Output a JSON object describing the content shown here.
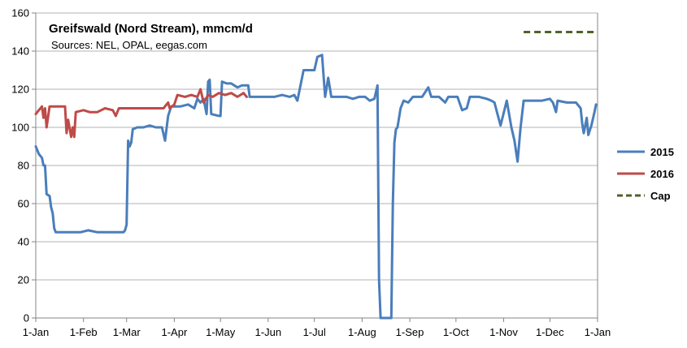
{
  "chart_data": {
    "type": "line",
    "title": "Greifswald (Nord Stream), mmcm/d",
    "subtitle": "Sources:  NEL, OPAL, eegas.com",
    "xlabel": "",
    "ylabel": "",
    "ylim": [
      0,
      160
    ],
    "yticks": [
      0,
      20,
      40,
      60,
      80,
      100,
      120,
      140,
      160
    ],
    "x_ticks": [
      "1-Jan",
      "1-Feb",
      "1-Mar",
      "1-Apr",
      "1-May",
      "1-Jun",
      "1-Jul",
      "1-Aug",
      "1-Sep",
      "1-Oct",
      "1-Nov",
      "1-Dec",
      "1-Jan"
    ],
    "grid": "horizontal",
    "legend_position": "right",
    "series": [
      {
        "name": "2015",
        "color": "#4a7ebb",
        "points": [
          [
            "2015-01-01",
            90
          ],
          [
            "2015-01-03",
            86
          ],
          [
            "2015-01-05",
            84
          ],
          [
            "2015-01-06",
            80
          ],
          [
            "2015-01-07",
            80
          ],
          [
            "2015-01-08",
            65
          ],
          [
            "2015-01-10",
            64
          ],
          [
            "2015-01-11",
            58
          ],
          [
            "2015-01-12",
            55
          ],
          [
            "2015-01-13",
            47
          ],
          [
            "2015-01-14",
            45
          ],
          [
            "2015-01-20",
            45
          ],
          [
            "2015-01-25",
            45
          ],
          [
            "2015-01-30",
            45
          ],
          [
            "2015-02-04",
            46
          ],
          [
            "2015-02-10",
            45
          ],
          [
            "2015-02-16",
            45
          ],
          [
            "2015-02-22",
            45
          ],
          [
            "2015-02-27",
            45
          ],
          [
            "2015-02-28",
            46
          ],
          [
            "2015-03-01",
            49
          ],
          [
            "2015-03-02",
            93
          ],
          [
            "2015-03-03",
            90
          ],
          [
            "2015-03-04",
            92
          ],
          [
            "2015-03-05",
            99
          ],
          [
            "2015-03-08",
            100
          ],
          [
            "2015-03-12",
            100
          ],
          [
            "2015-03-16",
            101
          ],
          [
            "2015-03-20",
            100
          ],
          [
            "2015-03-24",
            100
          ],
          [
            "2015-03-26",
            93
          ],
          [
            "2015-03-28",
            106
          ],
          [
            "2015-03-30",
            111
          ],
          [
            "2015-04-05",
            111
          ],
          [
            "2015-04-10",
            112
          ],
          [
            "2015-04-14",
            110
          ],
          [
            "2015-04-16",
            115
          ],
          [
            "2015-04-18",
            113
          ],
          [
            "2015-04-20",
            115
          ],
          [
            "2015-04-22",
            107
          ],
          [
            "2015-04-23",
            124
          ],
          [
            "2015-04-24",
            125
          ],
          [
            "2015-04-25",
            107
          ],
          [
            "2015-04-30",
            106
          ],
          [
            "2015-05-01",
            106
          ],
          [
            "2015-05-02",
            124
          ],
          [
            "2015-05-05",
            123
          ],
          [
            "2015-05-08",
            123
          ],
          [
            "2015-05-10",
            122
          ],
          [
            "2015-05-12",
            121
          ],
          [
            "2015-05-15",
            122
          ],
          [
            "2015-05-19",
            122
          ],
          [
            "2015-05-20",
            116
          ],
          [
            "2015-05-25",
            116
          ],
          [
            "2015-05-30",
            116
          ],
          [
            "2015-06-05",
            116
          ],
          [
            "2015-06-10",
            117
          ],
          [
            "2015-06-15",
            116
          ],
          [
            "2015-06-18",
            117
          ],
          [
            "2015-06-20",
            114
          ],
          [
            "2015-06-24",
            130
          ],
          [
            "2015-06-28",
            130
          ],
          [
            "2015-07-01",
            130
          ],
          [
            "2015-07-03",
            137
          ],
          [
            "2015-07-06",
            138
          ],
          [
            "2015-07-08",
            116
          ],
          [
            "2015-07-10",
            126
          ],
          [
            "2015-07-12",
            116
          ],
          [
            "2015-07-18",
            116
          ],
          [
            "2015-07-22",
            116
          ],
          [
            "2015-07-26",
            115
          ],
          [
            "2015-07-30",
            116
          ],
          [
            "2015-08-03",
            116
          ],
          [
            "2015-08-06",
            114
          ],
          [
            "2015-08-09",
            115
          ],
          [
            "2015-08-11",
            122
          ],
          [
            "2015-08-12",
            20
          ],
          [
            "2015-08-13",
            0
          ],
          [
            "2015-08-20",
            0
          ],
          [
            "2015-08-21",
            60
          ],
          [
            "2015-08-22",
            92
          ],
          [
            "2015-08-23",
            99
          ],
          [
            "2015-08-24",
            100
          ],
          [
            "2015-08-26",
            110
          ],
          [
            "2015-08-28",
            114
          ],
          [
            "2015-08-31",
            113
          ],
          [
            "2015-09-03",
            116
          ],
          [
            "2015-09-09",
            116
          ],
          [
            "2015-09-13",
            121
          ],
          [
            "2015-09-15",
            116
          ],
          [
            "2015-09-20",
            116
          ],
          [
            "2015-09-24",
            113
          ],
          [
            "2015-09-26",
            116
          ],
          [
            "2015-10-02",
            116
          ],
          [
            "2015-10-05",
            109
          ],
          [
            "2015-10-08",
            110
          ],
          [
            "2015-10-10",
            116
          ],
          [
            "2015-10-16",
            116
          ],
          [
            "2015-10-21",
            115
          ],
          [
            "2015-10-24",
            114
          ],
          [
            "2015-10-26",
            113
          ],
          [
            "2015-10-28",
            107
          ],
          [
            "2015-10-30",
            101
          ],
          [
            "2015-11-03",
            114
          ],
          [
            "2015-11-06",
            100
          ],
          [
            "2015-11-08",
            93
          ],
          [
            "2015-11-10",
            82
          ],
          [
            "2015-11-12",
            100
          ],
          [
            "2015-11-14",
            114
          ],
          [
            "2015-11-20",
            114
          ],
          [
            "2015-11-26",
            114
          ],
          [
            "2015-12-01",
            115
          ],
          [
            "2015-12-03",
            113
          ],
          [
            "2015-12-05",
            108
          ],
          [
            "2015-12-06",
            114
          ],
          [
            "2015-12-12",
            113
          ],
          [
            "2015-12-18",
            113
          ],
          [
            "2015-12-21",
            110
          ],
          [
            "2015-12-22",
            102
          ],
          [
            "2015-12-23",
            97
          ],
          [
            "2015-12-25",
            105
          ],
          [
            "2015-12-26",
            96
          ],
          [
            "2015-12-28",
            101
          ],
          [
            "2015-12-30",
            108
          ],
          [
            "2015-12-31",
            112
          ]
        ]
      },
      {
        "name": "2016",
        "color": "#be4b48",
        "points": [
          [
            "2016-01-01",
            107
          ],
          [
            "2016-01-03",
            109
          ],
          [
            "2016-01-05",
            111
          ],
          [
            "2016-01-06",
            105
          ],
          [
            "2016-01-07",
            110
          ],
          [
            "2016-01-08",
            100
          ],
          [
            "2016-01-10",
            111
          ],
          [
            "2016-01-20",
            111
          ],
          [
            "2016-01-21",
            97
          ],
          [
            "2016-01-22",
            104
          ],
          [
            "2016-01-24",
            95
          ],
          [
            "2016-01-25",
            100
          ],
          [
            "2016-01-26",
            95
          ],
          [
            "2016-01-27",
            108
          ],
          [
            "2016-02-01",
            109
          ],
          [
            "2016-02-05",
            108
          ],
          [
            "2016-02-10",
            108
          ],
          [
            "2016-02-15",
            110
          ],
          [
            "2016-02-20",
            109
          ],
          [
            "2016-02-22",
            106
          ],
          [
            "2016-02-24",
            110
          ],
          [
            "2016-03-05",
            110
          ],
          [
            "2016-03-15",
            110
          ],
          [
            "2016-03-25",
            110
          ],
          [
            "2016-03-28",
            113
          ],
          [
            "2016-03-29",
            110
          ],
          [
            "2016-04-01",
            112
          ],
          [
            "2016-04-03",
            117
          ],
          [
            "2016-04-08",
            116
          ],
          [
            "2016-04-12",
            117
          ],
          [
            "2016-04-16",
            116
          ],
          [
            "2016-04-18",
            120
          ],
          [
            "2016-04-20",
            113
          ],
          [
            "2016-04-23",
            117
          ],
          [
            "2016-04-26",
            116
          ],
          [
            "2016-04-30",
            118
          ],
          [
            "2016-05-04",
            117
          ],
          [
            "2016-05-08",
            118
          ],
          [
            "2016-05-12",
            116
          ],
          [
            "2016-05-16",
            118
          ],
          [
            "2016-05-18",
            116
          ]
        ]
      },
      {
        "name": "Cap",
        "color": "#4f6228",
        "style": "dashed",
        "points": [
          [
            "2015-11-14",
            150
          ],
          [
            "2015-12-31",
            150
          ]
        ]
      }
    ]
  }
}
